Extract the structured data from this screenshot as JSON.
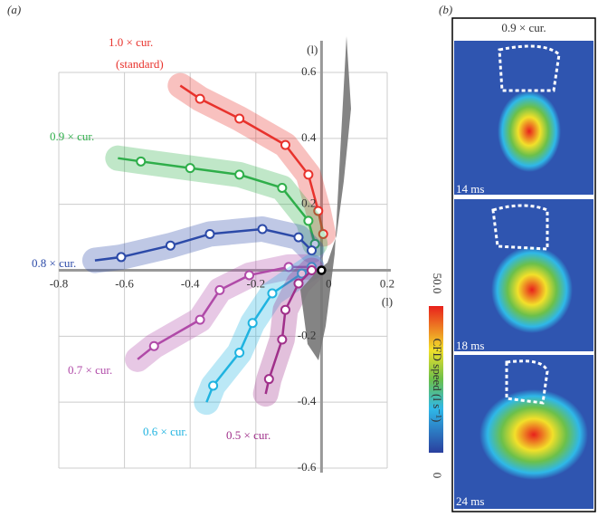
{
  "chart_data": {
    "type": "line",
    "panel_label": "(a)",
    "x_label": "(l)",
    "y_label": "(l)",
    "xlim": [
      -0.8,
      0.2
    ],
    "ylim": [
      -0.6,
      0.6
    ],
    "xticks": [
      -0.8,
      -0.6,
      -0.4,
      -0.2,
      0,
      0.2
    ],
    "yticks": [
      -0.6,
      -0.4,
      -0.2,
      0.2,
      0.4,
      0.6
    ],
    "grid": true,
    "series": [
      {
        "name": "1.0 × cur.",
        "note": "(standard)",
        "color": "#e8322c",
        "x": [
          -0.43,
          -0.37,
          -0.25,
          -0.11,
          -0.04,
          -0.01,
          0.005
        ],
        "values": [
          0.56,
          0.52,
          0.46,
          0.38,
          0.29,
          0.18,
          0.11
        ]
      },
      {
        "name": "0.9 × cur.",
        "color": "#2fae4a",
        "x": [
          -0.62,
          -0.55,
          -0.4,
          -0.25,
          -0.12,
          -0.04,
          -0.02
        ],
        "values": [
          0.34,
          0.33,
          0.31,
          0.29,
          0.25,
          0.15,
          0.08
        ]
      },
      {
        "name": "0.8 × cur.",
        "color": "#2c4aa8",
        "x": [
          -0.69,
          -0.61,
          -0.46,
          -0.34,
          -0.18,
          -0.07,
          -0.03
        ],
        "values": [
          0.03,
          0.04,
          0.075,
          0.11,
          0.125,
          0.1,
          0.06
        ]
      },
      {
        "name": "0.7 × cur.",
        "color": "#b04aa8",
        "x": [
          -0.56,
          -0.51,
          -0.37,
          -0.31,
          -0.22,
          -0.1,
          -0.03
        ],
        "values": [
          -0.27,
          -0.23,
          -0.15,
          -0.06,
          -0.015,
          0.01,
          0.01
        ]
      },
      {
        "name": "0.6 × cur.",
        "color": "#1fb3e0",
        "x": [
          -0.35,
          -0.33,
          -0.25,
          -0.21,
          -0.15,
          -0.06,
          -0.03
        ],
        "values": [
          -0.4,
          -0.35,
          -0.25,
          -0.16,
          -0.07,
          -0.01,
          0.01
        ]
      },
      {
        "name": "0.5 × cur.",
        "color": "#a0308a",
        "x": [
          -0.17,
          -0.16,
          -0.12,
          -0.11,
          -0.07,
          -0.03
        ],
        "values": [
          -0.375,
          -0.33,
          -0.21,
          -0.12,
          -0.04,
          0
        ]
      }
    ]
  },
  "panel_b": {
    "label": "(b)",
    "title": "0.9 × cur.",
    "frames": [
      "14 ms",
      "18 ms",
      "24 ms"
    ],
    "colorbar": {
      "label": "CFD speed (l s⁻¹)",
      "ticks": [
        {
          "value": 0,
          "label": "0"
        },
        {
          "value": 50,
          "label": "50.0"
        }
      ]
    }
  }
}
